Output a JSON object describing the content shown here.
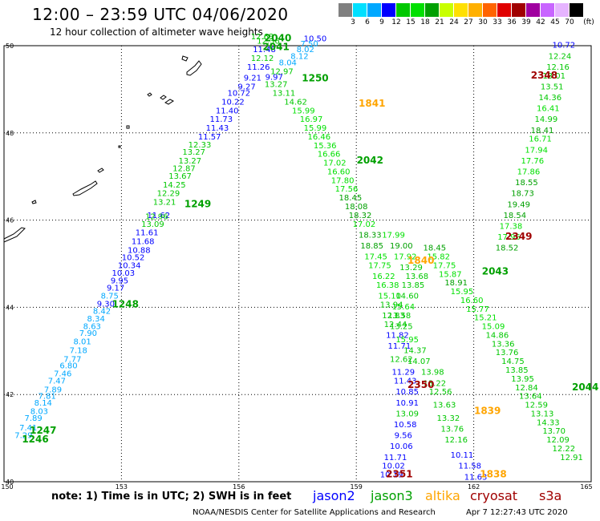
{
  "header": {
    "title": "12:00 – 23:59 UTC 04/06/2020",
    "subtitle": "12 hour collection of altimeter wave heights"
  },
  "legend": {
    "unit": "(ft)",
    "colors": [
      "#808080",
      "#00e0ff",
      "#00a8ff",
      "#0000ff",
      "#00c800",
      "#00e000",
      "#00a000",
      "#c8ff00",
      "#ffe000",
      "#ffb000",
      "#ff6400",
      "#e00000",
      "#a00000",
      "#a000a0",
      "#c864ff",
      "#e6b4ff",
      "#000000"
    ],
    "labels": [
      "3",
      "6",
      "9",
      "12",
      "15",
      "18",
      "21",
      "24",
      "27",
      "30",
      "33",
      "36",
      "39",
      "42",
      "45",
      "70"
    ]
  },
  "map": {
    "lon_ticks": [
      "150",
      "153",
      "156",
      "159",
      "162",
      "165"
    ],
    "lat_ticks": [
      "50",
      "48",
      "46",
      "44",
      "42",
      "40"
    ]
  },
  "tracks": [
    {
      "name": "t1246",
      "points": [
        {
          "lon": 150.5,
          "lat": 41.0,
          "v": "7.29"
        },
        {
          "lon": 150.62,
          "lat": 41.18,
          "v": "7.41"
        },
        {
          "lon": 150.75,
          "lat": 41.4,
          "v": "7.89"
        },
        {
          "lon": 150.9,
          "lat": 41.55,
          "v": "8.03"
        },
        {
          "lon": 151.0,
          "lat": 41.75,
          "v": "8.14"
        },
        {
          "lon": 151.1,
          "lat": 41.9,
          "v": "7.81"
        },
        {
          "lon": 151.25,
          "lat": 42.05,
          "v": "7.89"
        },
        {
          "lon": 151.35,
          "lat": 42.25,
          "v": "7.47"
        },
        {
          "lon": 151.5,
          "lat": 42.42,
          "v": "7.46"
        },
        {
          "lon": 151.65,
          "lat": 42.6,
          "v": "6.80"
        },
        {
          "lon": 151.75,
          "lat": 42.75,
          "v": "7.77"
        },
        {
          "lon": 151.9,
          "lat": 42.95,
          "v": "7.18"
        },
        {
          "lon": 152.0,
          "lat": 43.15,
          "v": "8.01"
        },
        {
          "lon": 152.15,
          "lat": 43.35,
          "v": "7.90"
        },
        {
          "lon": 152.25,
          "lat": 43.5,
          "v": "8.63"
        },
        {
          "lon": 152.35,
          "lat": 43.68,
          "v": "8.34"
        },
        {
          "lon": 152.5,
          "lat": 43.85,
          "v": "8.42"
        },
        {
          "lon": 152.6,
          "lat": 44.02,
          "v": "9.30"
        },
        {
          "lon": 152.7,
          "lat": 44.2,
          "v": "8.75"
        },
        {
          "lon": 152.85,
          "lat": 44.38,
          "v": "9.17"
        },
        {
          "lon": 152.95,
          "lat": 44.55,
          "v": "9.95"
        },
        {
          "lon": 153.05,
          "lat": 44.72,
          "v": "10.03"
        },
        {
          "lon": 153.2,
          "lat": 44.9,
          "v": "10.34"
        },
        {
          "lon": 153.3,
          "lat": 45.08,
          "v": "10.52"
        },
        {
          "lon": 153.45,
          "lat": 45.25,
          "v": "10.88"
        },
        {
          "lon": 153.55,
          "lat": 45.45,
          "v": "11.68"
        },
        {
          "lon": 153.65,
          "lat": 45.65,
          "v": "11.61"
        },
        {
          "lon": 153.95,
          "lat": 46.05,
          "v": "11.62"
        }
      ]
    },
    {
      "name": "t1249",
      "points": [
        {
          "lon": 153.8,
          "lat": 45.85,
          "v": "13.09"
        },
        {
          "lon": 153.9,
          "lat": 46.02,
          "v": "12.96"
        },
        {
          "lon": 154.1,
          "lat": 46.35,
          "v": "13.21"
        },
        {
          "lon": 154.2,
          "lat": 46.55,
          "v": "12.29"
        },
        {
          "lon": 154.35,
          "lat": 46.75,
          "v": "14.25"
        },
        {
          "lon": 154.5,
          "lat": 46.95,
          "v": "13.67"
        },
        {
          "lon": 154.6,
          "lat": 47.12,
          "v": "12.87"
        },
        {
          "lon": 154.75,
          "lat": 47.3,
          "v": "13.27"
        },
        {
          "lon": 154.85,
          "lat": 47.5,
          "v": "13.27"
        },
        {
          "lon": 155.0,
          "lat": 47.67,
          "v": "12.33"
        },
        {
          "lon": 155.25,
          "lat": 47.85,
          "v": "11.57"
        },
        {
          "lon": 155.45,
          "lat": 48.05,
          "v": "11.43"
        },
        {
          "lon": 155.55,
          "lat": 48.25,
          "v": "11.73"
        },
        {
          "lon": 155.7,
          "lat": 48.45,
          "v": "11.40"
        },
        {
          "lon": 155.85,
          "lat": 48.65,
          "v": "10.22"
        },
        {
          "lon": 156.0,
          "lat": 48.85,
          "v": "10.72"
        },
        {
          "lon": 156.2,
          "lat": 49.0,
          "v": "9.27"
        },
        {
          "lon": 156.35,
          "lat": 49.2,
          "v": "9.21"
        },
        {
          "lon": 156.5,
          "lat": 49.45,
          "v": "11.26"
        },
        {
          "lon": 156.6,
          "lat": 49.65,
          "v": "12.12"
        },
        {
          "lon": 156.65,
          "lat": 49.85,
          "v": "11.48"
        },
        {
          "lon": 156.75,
          "lat": 50.05,
          "v": "12.36"
        },
        {
          "lon": 156.6,
          "lat": 50.15,
          "v": "12.63"
        }
      ]
    },
    {
      "name": "t1250",
      "points": [
        {
          "lon": 157.95,
          "lat": 50.1,
          "v": "10.50"
        },
        {
          "lon": 157.7,
          "lat": 49.85,
          "v": "8.02"
        },
        {
          "lon": 157.8,
          "lat": 49.98,
          "v": "7.50"
        },
        {
          "lon": 157.55,
          "lat": 49.7,
          "v": "8.12"
        },
        {
          "lon": 157.25,
          "lat": 49.55,
          "v": "8.04"
        },
        {
          "lon": 157.1,
          "lat": 49.35,
          "v": "12.97"
        },
        {
          "lon": 156.9,
          "lat": 49.22,
          "v": "9.97"
        },
        {
          "lon": 156.95,
          "lat": 49.05,
          "v": "13.27"
        },
        {
          "lon": 157.15,
          "lat": 48.85,
          "v": "13.11"
        },
        {
          "lon": 157.45,
          "lat": 48.65,
          "v": "14.62"
        },
        {
          "lon": 157.65,
          "lat": 48.45,
          "v": "15.99"
        },
        {
          "lon": 157.85,
          "lat": 48.25,
          "v": "16.97"
        },
        {
          "lon": 157.95,
          "lat": 48.05,
          "v": "15.99"
        },
        {
          "lon": 158.05,
          "lat": 47.85,
          "v": "16.46"
        },
        {
          "lon": 158.2,
          "lat": 47.65,
          "v": "15.36"
        },
        {
          "lon": 158.3,
          "lat": 47.45,
          "v": "16.66"
        },
        {
          "lon": 158.45,
          "lat": 47.25,
          "v": "17.02"
        },
        {
          "lon": 158.55,
          "lat": 47.05,
          "v": "16.60"
        },
        {
          "lon": 158.65,
          "lat": 46.85,
          "v": "17.80"
        },
        {
          "lon": 158.75,
          "lat": 46.65,
          "v": "17.56"
        },
        {
          "lon": 158.85,
          "lat": 46.45,
          "v": "18.45"
        },
        {
          "lon": 159.0,
          "lat": 46.25,
          "v": "18.08"
        },
        {
          "lon": 159.1,
          "lat": 46.05,
          "v": "18.32"
        },
        {
          "lon": 159.2,
          "lat": 45.85,
          "v": "17.02"
        },
        {
          "lon": 159.35,
          "lat": 45.6,
          "v": "18.33"
        },
        {
          "lon": 159.4,
          "lat": 45.35,
          "v": "18.85"
        },
        {
          "lon": 159.5,
          "lat": 45.1,
          "v": "17.45"
        },
        {
          "lon": 159.6,
          "lat": 44.9,
          "v": "17.75"
        },
        {
          "lon": 159.7,
          "lat": 44.65,
          "v": "16.22"
        },
        {
          "lon": 159.8,
          "lat": 44.45,
          "v": "16.38"
        },
        {
          "lon": 159.85,
          "lat": 44.2,
          "v": "15.10"
        },
        {
          "lon": 159.9,
          "lat": 44.0,
          "v": "13.94"
        },
        {
          "lon": 159.95,
          "lat": 43.75,
          "v": "12.83"
        },
        {
          "lon": 160.0,
          "lat": 43.55,
          "v": "12.44"
        },
        {
          "lon": 160.05,
          "lat": 43.3,
          "v": "11.82"
        },
        {
          "lon": 160.1,
          "lat": 43.05,
          "v": "11.71"
        },
        {
          "lon": 160.15,
          "lat": 42.75,
          "v": "12.62"
        },
        {
          "lon": 160.2,
          "lat": 42.45,
          "v": "11.29"
        },
        {
          "lon": 160.25,
          "lat": 42.25,
          "v": "11.43"
        },
        {
          "lon": 160.3,
          "lat": 42.0,
          "v": "10.85"
        },
        {
          "lon": 160.3,
          "lat": 41.75,
          "v": "10.91"
        },
        {
          "lon": 160.3,
          "lat": 41.5,
          "v": "13.09"
        },
        {
          "lon": 160.25,
          "lat": 41.25,
          "v": "10.58"
        },
        {
          "lon": 160.2,
          "lat": 41.0,
          "v": "9.56"
        },
        {
          "lon": 160.15,
          "lat": 40.75,
          "v": "10.06"
        },
        {
          "lon": 160.0,
          "lat": 40.5,
          "v": "11.71"
        },
        {
          "lon": 159.95,
          "lat": 40.3,
          "v": "10.02"
        },
        {
          "lon": 159.9,
          "lat": 40.1,
          "v": "10.19"
        }
      ]
    },
    {
      "name": "t2348",
      "points": [
        {
          "lon": 164.3,
          "lat": 49.95,
          "v": "10.72"
        },
        {
          "lon": 164.2,
          "lat": 49.7,
          "v": "12.24"
        },
        {
          "lon": 164.15,
          "lat": 49.45,
          "v": "12.16"
        },
        {
          "lon": 164.05,
          "lat": 49.25,
          "v": "13.01"
        },
        {
          "lon": 164.0,
          "lat": 49.0,
          "v": "13.51"
        },
        {
          "lon": 163.95,
          "lat": 48.75,
          "v": "14.36"
        },
        {
          "lon": 163.9,
          "lat": 48.5,
          "v": "16.41"
        },
        {
          "lon": 163.85,
          "lat": 48.25,
          "v": "14.99"
        },
        {
          "lon": 163.75,
          "lat": 48.0,
          "v": "18.41"
        },
        {
          "lon": 163.7,
          "lat": 47.8,
          "v": "16.71"
        },
        {
          "lon": 163.6,
          "lat": 47.55,
          "v": "17.94"
        },
        {
          "lon": 163.5,
          "lat": 47.3,
          "v": "17.76"
        },
        {
          "lon": 163.4,
          "lat": 47.05,
          "v": "17.86"
        },
        {
          "lon": 163.35,
          "lat": 46.8,
          "v": "18.55"
        },
        {
          "lon": 163.25,
          "lat": 46.55,
          "v": "18.73"
        },
        {
          "lon": 163.15,
          "lat": 46.3,
          "v": "19.49"
        },
        {
          "lon": 163.05,
          "lat": 46.05,
          "v": "18.54"
        },
        {
          "lon": 162.95,
          "lat": 45.8,
          "v": "17.38"
        },
        {
          "lon": 162.9,
          "lat": 45.55,
          "v": "17.96"
        },
        {
          "lon": 162.85,
          "lat": 45.3,
          "v": "18.52"
        }
      ]
    },
    {
      "name": "t2042",
      "points": [
        {
          "lon": 159.95,
          "lat": 45.6,
          "v": "17.99"
        },
        {
          "lon": 160.15,
          "lat": 45.35,
          "v": "19.00"
        },
        {
          "lon": 160.25,
          "lat": 45.1,
          "v": "17.92"
        },
        {
          "lon": 160.4,
          "lat": 44.85,
          "v": "13.29"
        },
        {
          "lon": 160.55,
          "lat": 44.65,
          "v": "13.68"
        },
        {
          "lon": 160.45,
          "lat": 44.45,
          "v": "13.85"
        },
        {
          "lon": 160.3,
          "lat": 44.2,
          "v": "14.60"
        },
        {
          "lon": 160.2,
          "lat": 43.95,
          "v": "15.64"
        },
        {
          "lon": 160.1,
          "lat": 43.75,
          "v": "13.58"
        },
        {
          "lon": 160.15,
          "lat": 43.5,
          "v": "13.25"
        },
        {
          "lon": 160.3,
          "lat": 43.2,
          "v": "15.95"
        },
        {
          "lon": 160.5,
          "lat": 42.95,
          "v": "14.37"
        },
        {
          "lon": 160.6,
          "lat": 42.7,
          "v": "14.07"
        },
        {
          "lon": 160.95,
          "lat": 42.45,
          "v": "13.98"
        },
        {
          "lon": 161.0,
          "lat": 42.2,
          "v": "13.22"
        }
      ]
    },
    {
      "name": "t2043",
      "points": [
        {
          "lon": 161.0,
          "lat": 45.3,
          "v": "18.45"
        },
        {
          "lon": 161.1,
          "lat": 45.1,
          "v": "15.82"
        },
        {
          "lon": 161.25,
          "lat": 44.9,
          "v": "17.75"
        },
        {
          "lon": 161.4,
          "lat": 44.7,
          "v": "15.87"
        },
        {
          "lon": 161.55,
          "lat": 44.5,
          "v": "18.91"
        },
        {
          "lon": 161.7,
          "lat": 44.3,
          "v": "15.95"
        },
        {
          "lon": 161.95,
          "lat": 44.1,
          "v": "16.60"
        },
        {
          "lon": 162.1,
          "lat": 43.9,
          "v": "15.77"
        },
        {
          "lon": 162.3,
          "lat": 43.7,
          "v": "15.21"
        },
        {
          "lon": 162.5,
          "lat": 43.5,
          "v": "15.09"
        },
        {
          "lon": 162.6,
          "lat": 43.3,
          "v": "14.86"
        },
        {
          "lon": 162.75,
          "lat": 43.1,
          "v": "13.36"
        },
        {
          "lon": 162.85,
          "lat": 42.9,
          "v": "13.76"
        },
        {
          "lon": 163.0,
          "lat": 42.7,
          "v": "14.75"
        },
        {
          "lon": 163.1,
          "lat": 42.5,
          "v": "13.85"
        },
        {
          "lon": 163.25,
          "lat": 42.3,
          "v": "13.95"
        },
        {
          "lon": 163.35,
          "lat": 42.1,
          "v": "12.84"
        },
        {
          "lon": 163.45,
          "lat": 41.9,
          "v": "13.64"
        },
        {
          "lon": 163.6,
          "lat": 41.7,
          "v": "12.59"
        },
        {
          "lon": 163.75,
          "lat": 41.5,
          "v": "13.13"
        },
        {
          "lon": 163.9,
          "lat": 41.3,
          "v": "14.33"
        },
        {
          "lon": 164.05,
          "lat": 41.1,
          "v": "13.70"
        },
        {
          "lon": 164.15,
          "lat": 40.9,
          "v": "12.09"
        },
        {
          "lon": 164.3,
          "lat": 40.7,
          "v": "12.22"
        },
        {
          "lon": 164.5,
          "lat": 40.5,
          "v": "12.91"
        }
      ]
    },
    {
      "name": "t1839",
      "points": [
        {
          "lon": 161.15,
          "lat": 42.0,
          "v": "12.56"
        },
        {
          "lon": 161.25,
          "lat": 41.7,
          "v": "13.63"
        },
        {
          "lon": 161.35,
          "lat": 41.4,
          "v": "13.32"
        },
        {
          "lon": 161.45,
          "lat": 41.15,
          "v": "13.76"
        },
        {
          "lon": 161.55,
          "lat": 40.9,
          "v": "12.16"
        },
        {
          "lon": 161.7,
          "lat": 40.55,
          "v": "10.11"
        },
        {
          "lon": 161.9,
          "lat": 40.3,
          "v": "11.58"
        },
        {
          "lon": 162.05,
          "lat": 40.05,
          "v": "11.63"
        }
      ]
    }
  ],
  "pass_labels": [
    {
      "lon": 157.0,
      "lat": 50.1,
      "text": "2040",
      "color": "#00a000"
    },
    {
      "lon": 156.95,
      "lat": 49.9,
      "text": "2041",
      "color": "#00a000"
    },
    {
      "lon": 157.95,
      "lat": 49.18,
      "text": "1250",
      "color": "#00a000"
    },
    {
      "lon": 159.4,
      "lat": 48.6,
      "text": "1841",
      "color": "#ffa500"
    },
    {
      "lon": 159.35,
      "lat": 47.3,
      "text": "2042",
      "color": "#00a000"
    },
    {
      "lon": 154.95,
      "lat": 46.3,
      "text": "1249",
      "color": "#00a000"
    },
    {
      "lon": 163.15,
      "lat": 45.55,
      "text": "2349",
      "color": "#a00000"
    },
    {
      "lon": 160.65,
      "lat": 45.0,
      "text": "1840",
      "color": "#ffa500"
    },
    {
      "lon": 162.55,
      "lat": 44.75,
      "text": "2043",
      "color": "#00a000"
    },
    {
      "lon": 153.1,
      "lat": 44.0,
      "text": "1248",
      "color": "#00a000"
    },
    {
      "lon": 160.65,
      "lat": 42.15,
      "text": "2350",
      "color": "#a00000"
    },
    {
      "lon": 164.85,
      "lat": 42.1,
      "text": "2044",
      "color": "#00a000"
    },
    {
      "lon": 162.35,
      "lat": 41.55,
      "text": "1839",
      "color": "#ffa500"
    },
    {
      "lon": 151.0,
      "lat": 41.1,
      "text": "1247",
      "color": "#00a000"
    },
    {
      "lon": 150.8,
      "lat": 40.9,
      "text": "1246",
      "color": "#00a000"
    },
    {
      "lon": 160.1,
      "lat": 40.1,
      "text": "2351",
      "color": "#a00000"
    },
    {
      "lon": 162.5,
      "lat": 40.1,
      "text": "1838",
      "color": "#ffa500"
    },
    {
      "lon": 163.8,
      "lat": 49.25,
      "text": "2348",
      "color": "#a00000"
    }
  ],
  "footer": {
    "note": "note:  1) Time is in UTC;  2) SWH is in feet",
    "satellites": [
      {
        "name": "jason2",
        "color": "#0000ff"
      },
      {
        "name": "jason3",
        "color": "#00a000"
      },
      {
        "name": "altika",
        "color": "#ffa500"
      },
      {
        "name": "cryosat",
        "color": "#a00000"
      },
      {
        "name": "s3a",
        "color": "#a00000"
      }
    ],
    "credit": "NOAA/NESDIS Center for Satellite Applications and Research",
    "timestamp": "Apr  7 12:27:43 UTC 2020"
  }
}
